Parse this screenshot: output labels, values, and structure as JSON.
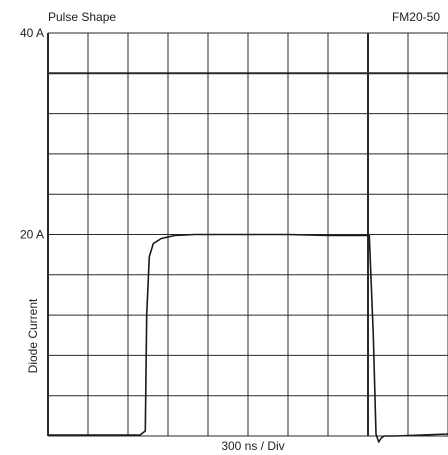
{
  "chart_data": {
    "type": "line",
    "title": "Pulse Shape",
    "model": "FM20-50",
    "ylabel": "Diode Current",
    "xlabel": "300 ns / Div",
    "y_tick_labels": [
      "40 A",
      "20 A"
    ],
    "y_ticks": [
      40,
      20
    ],
    "ylim": [
      0,
      40
    ],
    "x_unit": "ns",
    "xlim": [
      0,
      3000
    ],
    "grid": true,
    "x_divisions": 10,
    "y_divisions": 10,
    "series": [
      {
        "x": [
          0,
          250,
          600,
          690,
          730,
          740,
          760,
          790,
          850,
          950,
          1100,
          1400,
          1800,
          2100,
          2200,
          2410,
          2440,
          2460,
          2480,
          2500,
          2520,
          2550,
          2600,
          2800,
          3000
        ],
        "y": [
          0.1,
          0.1,
          0.1,
          0.1,
          0.5,
          12.0,
          17.8,
          19.1,
          19.6,
          19.9,
          20.0,
          20.0,
          20.0,
          19.9,
          19.9,
          19.9,
          10.0,
          0.2,
          -0.6,
          -0.2,
          0.0,
          0.0,
          0.0,
          0.1,
          0.2
        ]
      }
    ]
  }
}
